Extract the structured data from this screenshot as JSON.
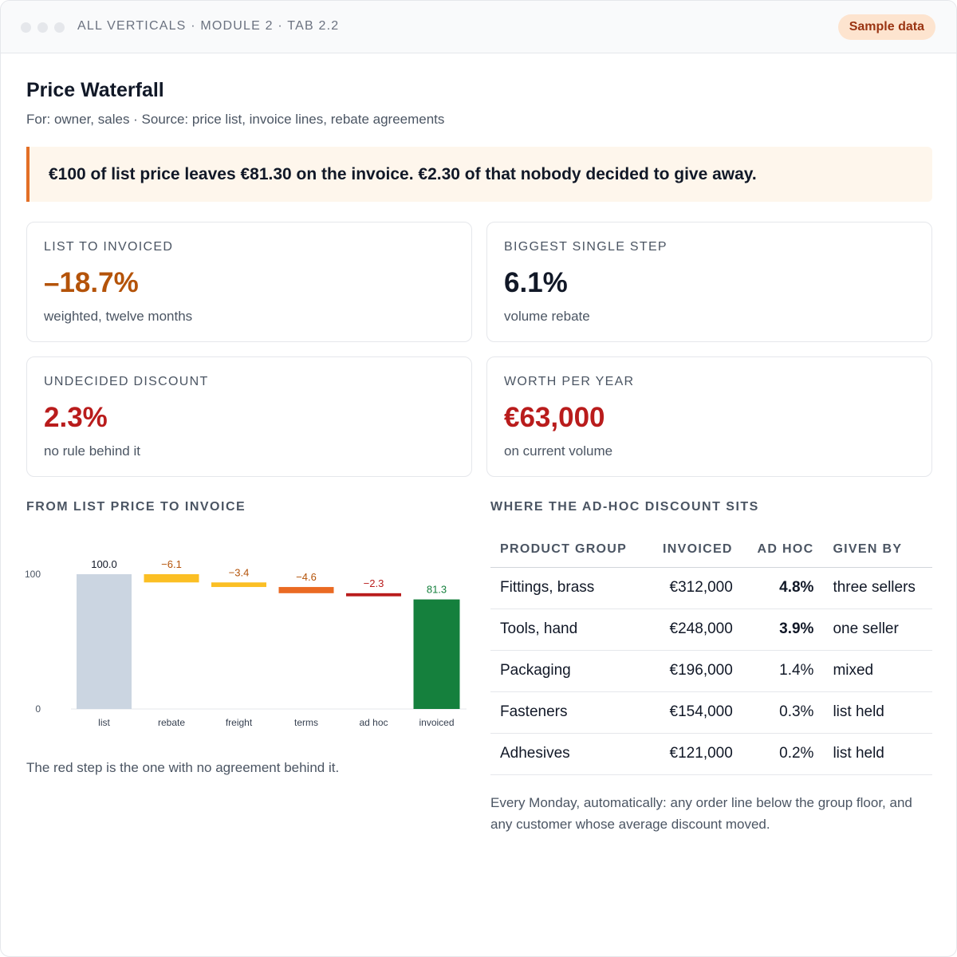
{
  "breadcrumb": "ALL VERTICALS · MODULE 2 · TAB 2.2",
  "badge": "Sample data",
  "title": "Price Waterfall",
  "subtitle": "For: owner, sales · Source: price list, invoice lines, rebate agreements",
  "callout": "€100 of list price leaves €81.30 on the invoice. €2.30 of that nobody decided to give away.",
  "cards": [
    {
      "label": "LIST TO INVOICED",
      "value": "–18.7%",
      "note": "weighted, twelve months",
      "color": "#b45309"
    },
    {
      "label": "BIGGEST SINGLE STEP",
      "value": "6.1%",
      "note": "volume rebate",
      "color": "#111827"
    },
    {
      "label": "UNDECIDED DISCOUNT",
      "value": "2.3%",
      "note": "no rule behind it",
      "color": "#b91c1c"
    },
    {
      "label": "WORTH PER YEAR",
      "value": "€63,000",
      "note": "on current volume",
      "color": "#b91c1c"
    }
  ],
  "chart_section_label": "FROM LIST PRICE TO INVOICE",
  "chart_caption": "The red step is the one with no agreement behind it.",
  "chart_data": {
    "type": "bar",
    "subtype": "waterfall",
    "categories": [
      "list",
      "rebate",
      "freight",
      "terms",
      "ad hoc",
      "invoiced"
    ],
    "values": [
      100.0,
      -6.1,
      -3.4,
      -4.6,
      -2.3,
      81.3
    ],
    "data_labels": [
      "100.0",
      "−6.1",
      "−3.4",
      "−4.6",
      "−2.3",
      "81.3"
    ],
    "yticks": [
      "0",
      "100"
    ],
    "ylim": [
      0,
      100
    ],
    "colors": [
      "#cbd5e1",
      "#fbbf24",
      "#fbbf24",
      "#ea6a23",
      "#b91c1c",
      "#15803d"
    ],
    "label_colors": [
      "#111827",
      "#b45309",
      "#b45309",
      "#b45309",
      "#b91c1c",
      "#15803d"
    ],
    "grid": false
  },
  "table_section_label": "WHERE THE AD-HOC DISCOUNT SITS",
  "table": {
    "headers": [
      "PRODUCT GROUP",
      "INVOICED",
      "AD HOC",
      "GIVEN BY"
    ],
    "rows": [
      {
        "group": "Fittings, brass",
        "invoiced": "€312,000",
        "adhoc": "4.8%",
        "given_by": "three sellers",
        "tone": "red"
      },
      {
        "group": "Tools, hand",
        "invoiced": "€248,000",
        "adhoc": "3.9%",
        "given_by": "one seller",
        "tone": "red"
      },
      {
        "group": "Packaging",
        "invoiced": "€196,000",
        "adhoc": "1.4%",
        "given_by": "mixed",
        "tone": "neutral"
      },
      {
        "group": "Fasteners",
        "invoiced": "€154,000",
        "adhoc": "0.3%",
        "given_by": "list held",
        "tone": "green"
      },
      {
        "group": "Adhesives",
        "invoiced": "€121,000",
        "adhoc": "0.2%",
        "given_by": "list held",
        "tone": "green"
      }
    ]
  },
  "table_note": "Every Monday, automatically: any order line below the group floor, and any customer whose average discount moved."
}
